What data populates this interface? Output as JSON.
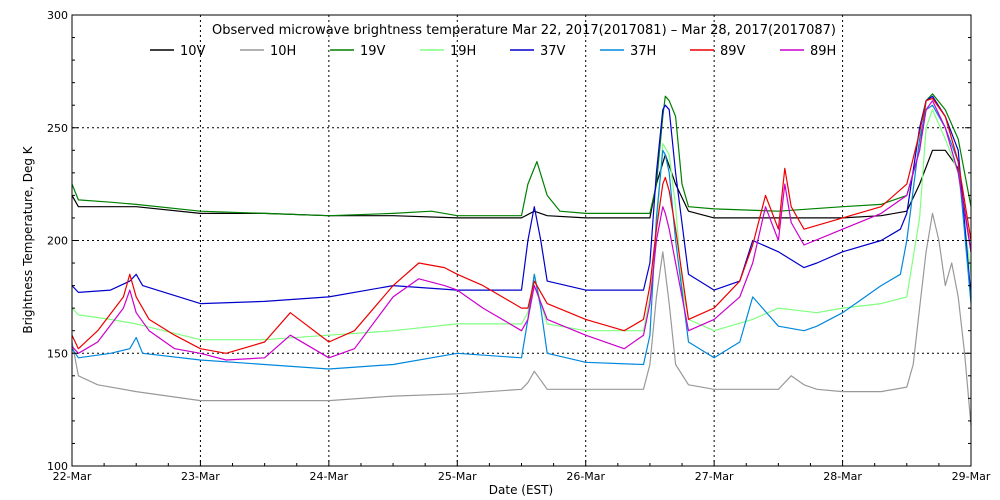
{
  "chart_data": {
    "type": "line",
    "title": "Observed microwave brightness temperature Mar 22, 2017(2017081) – Mar 28, 2017(2017087)",
    "xlabel": "Date (EST)",
    "ylabel": "Brightness Temperature, Deg K",
    "x_ticks": [
      "22-Mar",
      "23-Mar",
      "24-Mar",
      "25-Mar",
      "26-Mar",
      "27-Mar",
      "28-Mar",
      "29-Mar"
    ],
    "xlim": [
      0,
      7
    ],
    "ylim": [
      100,
      300
    ],
    "y_ticks": [
      100,
      150,
      200,
      250,
      300
    ],
    "grid": true,
    "legend_position": "top",
    "series": [
      {
        "name": "10V",
        "color": "#000000",
        "x": [
          0,
          0.05,
          0.3,
          0.5,
          1,
          1.5,
          2,
          2.5,
          3,
          3.5,
          3.6,
          3.7,
          4,
          4.5,
          4.55,
          4.62,
          4.7,
          4.8,
          5,
          5.5,
          6,
          6.3,
          6.5,
          6.6,
          6.7,
          6.8,
          6.9,
          7
        ],
        "y": [
          220,
          215,
          215,
          215,
          212,
          212,
          211,
          211,
          210,
          210,
          213,
          211,
          210,
          210,
          225,
          238,
          225,
          213,
          210,
          210,
          210,
          211,
          213,
          225,
          240,
          240,
          232,
          195
        ]
      },
      {
        "name": "10H",
        "color": "#999999",
        "x": [
          0,
          0.05,
          0.2,
          0.5,
          1,
          1.5,
          2,
          2.5,
          3,
          3.5,
          3.55,
          3.6,
          3.65,
          3.7,
          4,
          4.45,
          4.5,
          4.55,
          4.6,
          4.65,
          4.7,
          4.8,
          5,
          5.5,
          5.6,
          5.7,
          5.8,
          6,
          6.3,
          6.5,
          6.55,
          6.6,
          6.65,
          6.7,
          6.75,
          6.8,
          6.85,
          6.9,
          6.95,
          7
        ],
        "y": [
          155,
          140,
          136,
          133,
          129,
          129,
          129,
          131,
          132,
          134,
          137,
          142,
          138,
          134,
          134,
          134,
          145,
          175,
          195,
          172,
          145,
          136,
          134,
          134,
          140,
          136,
          134,
          133,
          133,
          135,
          145,
          170,
          195,
          212,
          200,
          180,
          190,
          175,
          150,
          118
        ]
      },
      {
        "name": "19V",
        "color": "#008000",
        "x": [
          0,
          0.05,
          0.3,
          0.5,
          1,
          1.5,
          2,
          2.5,
          2.8,
          3,
          3.5,
          3.55,
          3.62,
          3.7,
          3.8,
          4,
          4.5,
          4.55,
          4.6,
          4.62,
          4.65,
          4.7,
          4.75,
          4.8,
          5,
          5.5,
          6,
          6.3,
          6.5,
          6.6,
          6.65,
          6.7,
          6.8,
          6.9,
          7
        ],
        "y": [
          225,
          218,
          217,
          216,
          213,
          212,
          211,
          212,
          213,
          211,
          211,
          225,
          235,
          220,
          213,
          212,
          212,
          225,
          255,
          264,
          262,
          255,
          225,
          215,
          214,
          213,
          215,
          216,
          220,
          240,
          262,
          265,
          258,
          245,
          215
        ]
      },
      {
        "name": "19H",
        "color": "#80ff80",
        "x": [
          0,
          0.05,
          0.3,
          0.5,
          1,
          1.5,
          2,
          2.5,
          3,
          3.5,
          3.55,
          3.6,
          3.65,
          3.7,
          4,
          4.45,
          4.5,
          4.55,
          4.6,
          4.65,
          4.7,
          4.75,
          4.8,
          5,
          5.3,
          5.5,
          5.8,
          6,
          6.3,
          6.5,
          6.6,
          6.65,
          6.7,
          6.8,
          6.9,
          7
        ],
        "y": [
          170,
          167,
          165,
          163,
          156,
          156,
          158,
          160,
          163,
          163,
          168,
          185,
          172,
          163,
          160,
          160,
          175,
          205,
          243,
          238,
          215,
          180,
          165,
          160,
          165,
          170,
          168,
          170,
          172,
          175,
          210,
          250,
          258,
          245,
          230,
          185
        ]
      },
      {
        "name": "37V",
        "color": "#0000cc",
        "x": [
          0,
          0.05,
          0.3,
          0.45,
          0.5,
          0.55,
          1,
          1.5,
          2,
          2.5,
          3,
          3.5,
          3.55,
          3.6,
          3.65,
          3.7,
          4,
          4.45,
          4.5,
          4.55,
          4.6,
          4.62,
          4.65,
          4.7,
          4.8,
          5,
          5.2,
          5.3,
          5.5,
          5.7,
          5.8,
          6,
          6.3,
          6.45,
          6.5,
          6.6,
          6.65,
          6.7,
          6.8,
          6.9,
          7
        ],
        "y": [
          180,
          177,
          178,
          182,
          185,
          180,
          172,
          173,
          175,
          180,
          178,
          178,
          200,
          215,
          200,
          182,
          178,
          178,
          190,
          230,
          258,
          260,
          258,
          230,
          185,
          178,
          182,
          200,
          195,
          188,
          190,
          195,
          200,
          205,
          212,
          250,
          262,
          264,
          255,
          240,
          175
        ]
      },
      {
        "name": "37H",
        "color": "#0088dd",
        "x": [
          0,
          0.05,
          0.3,
          0.45,
          0.5,
          0.55,
          1,
          1.5,
          2,
          2.5,
          3,
          3.5,
          3.55,
          3.6,
          3.65,
          3.7,
          4,
          4.45,
          4.5,
          4.55,
          4.6,
          4.62,
          4.65,
          4.7,
          4.8,
          5,
          5.2,
          5.3,
          5.5,
          5.7,
          5.8,
          6,
          6.3,
          6.45,
          6.5,
          6.6,
          6.65,
          6.7,
          6.8,
          6.9,
          7
        ],
        "y": [
          152,
          148,
          150,
          152,
          157,
          150,
          147,
          145,
          143,
          145,
          150,
          148,
          165,
          185,
          170,
          150,
          146,
          145,
          158,
          210,
          240,
          238,
          230,
          200,
          155,
          148,
          155,
          175,
          162,
          160,
          162,
          168,
          180,
          185,
          200,
          245,
          258,
          260,
          250,
          235,
          172
        ]
      },
      {
        "name": "89V",
        "color": "#ee0000",
        "x": [
          0,
          0.05,
          0.2,
          0.4,
          0.45,
          0.5,
          0.6,
          0.8,
          1,
          1.2,
          1.5,
          1.7,
          2,
          2.2,
          2.5,
          2.7,
          2.9,
          3,
          3.2,
          3.5,
          3.55,
          3.6,
          3.7,
          4,
          4.3,
          4.45,
          4.5,
          4.55,
          4.6,
          4.62,
          4.65,
          4.7,
          4.8,
          5,
          5.2,
          5.3,
          5.4,
          5.5,
          5.55,
          5.6,
          5.7,
          6,
          6.3,
          6.5,
          6.6,
          6.65,
          6.7,
          6.8,
          6.9,
          7
        ],
        "y": [
          158,
          152,
          160,
          175,
          185,
          175,
          165,
          158,
          152,
          150,
          155,
          168,
          155,
          160,
          180,
          190,
          188,
          185,
          180,
          170,
          170,
          182,
          172,
          165,
          160,
          165,
          180,
          205,
          225,
          228,
          222,
          205,
          165,
          170,
          182,
          198,
          220,
          205,
          232,
          215,
          205,
          210,
          215,
          225,
          248,
          262,
          263,
          255,
          235,
          200
        ]
      },
      {
        "name": "89H",
        "color": "#cc00cc",
        "x": [
          0,
          0.05,
          0.2,
          0.4,
          0.45,
          0.5,
          0.6,
          0.8,
          1,
          1.2,
          1.5,
          1.7,
          2,
          2.2,
          2.5,
          2.7,
          2.9,
          3,
          3.2,
          3.5,
          3.55,
          3.6,
          3.7,
          4,
          4.3,
          4.45,
          4.5,
          4.55,
          4.6,
          4.62,
          4.65,
          4.7,
          4.8,
          5,
          5.2,
          5.3,
          5.4,
          5.5,
          5.55,
          5.6,
          5.7,
          6,
          6.3,
          6.5,
          6.6,
          6.65,
          6.7,
          6.8,
          6.9,
          7
        ],
        "y": [
          153,
          150,
          155,
          170,
          178,
          168,
          160,
          152,
          150,
          147,
          148,
          158,
          148,
          152,
          175,
          183,
          180,
          178,
          170,
          160,
          165,
          180,
          165,
          158,
          152,
          158,
          172,
          200,
          215,
          212,
          205,
          190,
          160,
          165,
          175,
          190,
          215,
          200,
          225,
          208,
          198,
          205,
          212,
          220,
          240,
          258,
          262,
          250,
          230,
          195
        ]
      }
    ]
  }
}
